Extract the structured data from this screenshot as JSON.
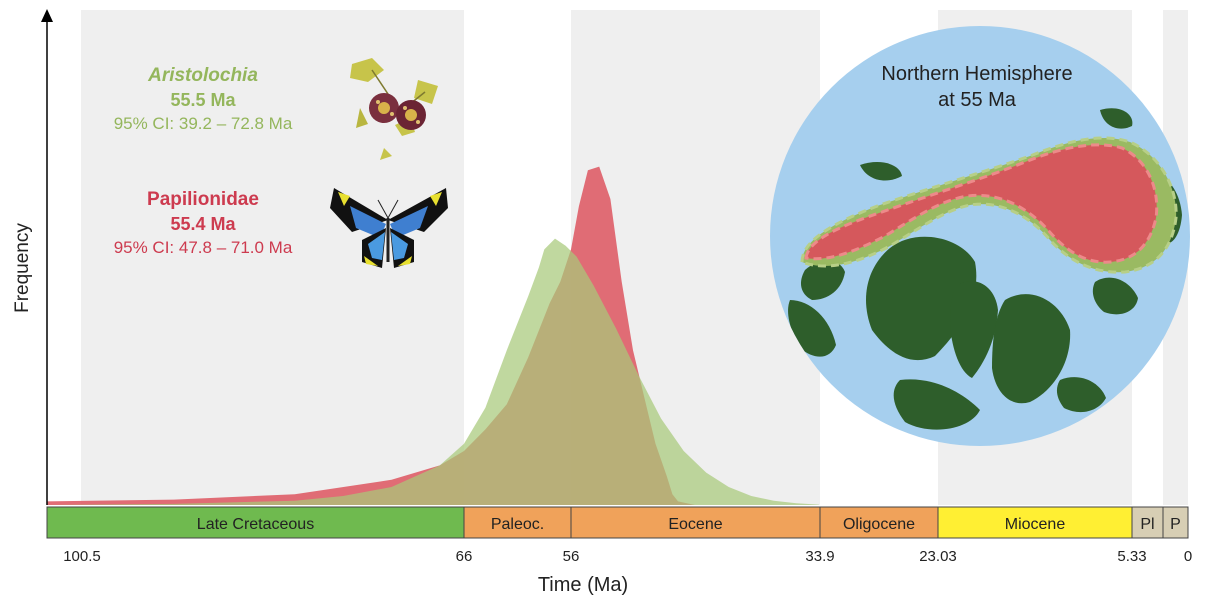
{
  "chart_data": {
    "type": "area",
    "title": "",
    "xlabel": "Time (Ma)",
    "ylabel": "Frequency",
    "xlim": [
      100.5,
      0
    ],
    "ylim": [
      0,
      1
    ],
    "x_ticks": [
      "100.5",
      "66",
      "56",
      "33.9",
      "23.03",
      "5.33",
      "0"
    ],
    "periods": [
      {
        "label": "Late Cretaceous",
        "start": 100.5,
        "end": 66,
        "color": "#6fba4f"
      },
      {
        "label": "Paleoc.",
        "start": 66,
        "end": 56,
        "color": "#f0a25a"
      },
      {
        "label": "Eocene",
        "start": 56,
        "end": 33.9,
        "color": "#f0a25a"
      },
      {
        "label": "Oligocene",
        "start": 33.9,
        "end": 23.03,
        "color": "#f0a25a"
      },
      {
        "label": "Miocene",
        "start": 23.03,
        "end": 5.33,
        "color": "#ffef33"
      },
      {
        "label": "Pl",
        "start": 5.33,
        "end": 2.6,
        "color": "#d7ceb4"
      },
      {
        "label": "P",
        "start": 2.6,
        "end": 0,
        "color": "#d7ceb4"
      }
    ],
    "series": [
      {
        "name": "Papilionidae",
        "color": "#de5d67",
        "x": [
          100.5,
          90,
          80,
          72,
          68,
          66,
          64,
          62,
          60,
          58,
          57,
          56,
          55.3,
          54.5,
          53.5,
          52.5,
          51.5,
          50.5,
          49.5,
          48.5,
          47.5,
          47.0,
          46.5,
          45
        ],
        "y": [
          0.01,
          0.015,
          0.03,
          0.07,
          0.11,
          0.15,
          0.21,
          0.28,
          0.41,
          0.56,
          0.62,
          0.71,
          0.83,
          0.93,
          0.94,
          0.85,
          0.62,
          0.43,
          0.3,
          0.17,
          0.08,
          0.03,
          0.01,
          0
        ]
      },
      {
        "name": "Aristolochia",
        "color": "#a8c97a",
        "x": [
          100.5,
          90,
          80,
          76,
          72,
          68,
          66,
          64,
          62,
          60,
          59,
          58.5,
          57.5,
          56.5,
          55.5,
          54,
          52,
          50,
          48,
          46,
          44,
          42,
          40,
          38,
          36,
          34
        ],
        "y": [
          0,
          0.003,
          0.012,
          0.025,
          0.05,
          0.11,
          0.17,
          0.27,
          0.43,
          0.58,
          0.66,
          0.71,
          0.74,
          0.72,
          0.69,
          0.61,
          0.49,
          0.36,
          0.24,
          0.15,
          0.09,
          0.05,
          0.025,
          0.012,
          0.005,
          0.001
        ]
      }
    ],
    "annotations": [
      {
        "name": "Aristolochia",
        "age": "55.5 Ma",
        "ci": "95% CI: 39.2 – 72.8 Ma",
        "color": "#94b65c"
      },
      {
        "name": "Papilionidae",
        "age": "55.4 Ma",
        "ci": "95% CI: 47.8 – 71.0 Ma",
        "color": "#cd3b4f"
      }
    ],
    "inset": {
      "title": "Northern Hemisphere",
      "subtitle": "at 55 Ma"
    }
  }
}
